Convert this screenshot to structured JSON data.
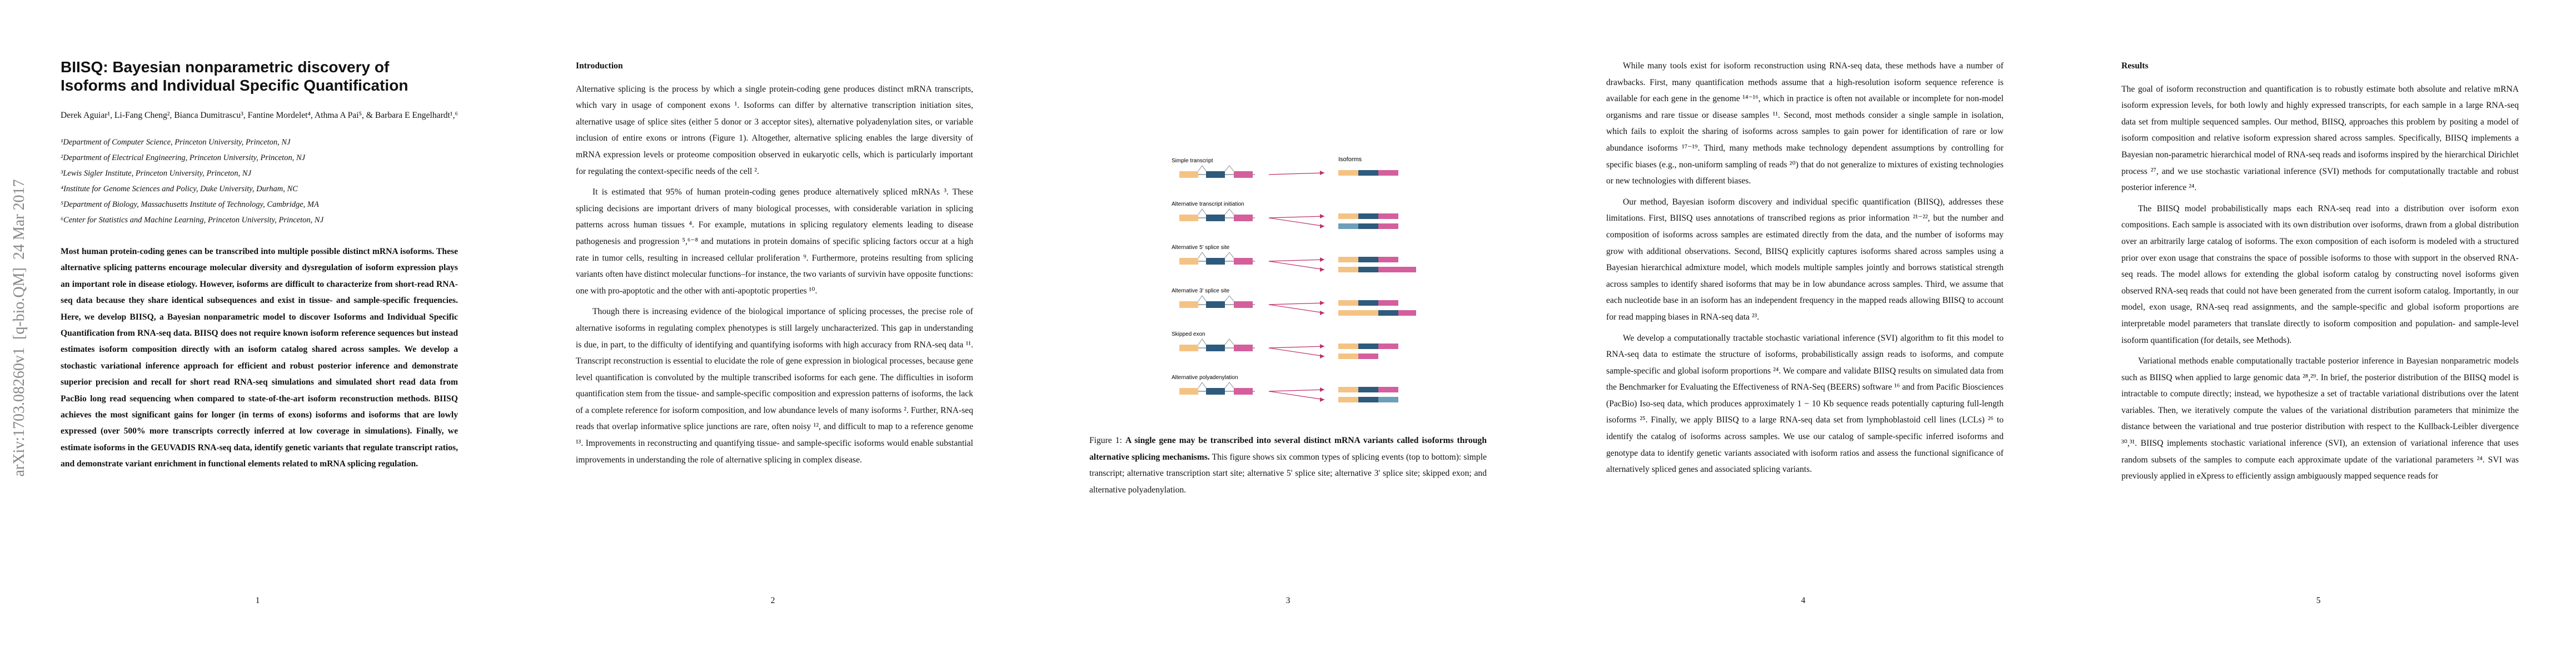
{
  "pages": [
    {
      "arxiv_stamp": "arXiv:1703.08260v1  [q-bio.QM]  24 Mar 2017",
      "title": "BIISQ: Bayesian nonparametric discovery of Isoforms and Individual Specific Quantification",
      "authors": "Derek Aguiar¹, Li-Fang Cheng², Bianca Dumitrascu³, Fantine Mordelet⁴, Athma A Pai⁵, & Barbara E Engelhardt¹,⁶",
      "affiliations": [
        "¹Department of Computer Science, Princeton University, Princeton, NJ",
        "²Department of Electrical Engineering, Princeton University, Princeton, NJ",
        "³Lewis Sigler Institute, Princeton University, Princeton, NJ",
        "⁴Institute for Genome Sciences and Policy, Duke University, Durham, NC",
        "⁵Department of Biology, Massachusetts Institute of Technology, Cambridge, MA",
        "⁶Center for Statistics and Machine Learning, Princeton University, Princeton, NJ"
      ],
      "abstract": "Most human protein-coding genes can be transcribed into multiple possible distinct mRNA isoforms. These alternative splicing patterns encourage molecular diversity and dysregulation of isoform expression plays an important role in disease etiology. However, isoforms are difficult to characterize from short-read RNA-seq data because they share identical subsequences and exist in tissue- and sample-specific frequencies. Here, we develop BIISQ, a Bayesian nonparametric model to discover Isoforms and Individual Specific Quantification from RNA-seq data. BIISQ does not require known isoform reference sequences but instead estimates isoform composition directly with an isoform catalog shared across samples. We develop a stochastic variational inference approach for efficient and robust posterior inference and demonstrate superior precision and recall for short read RNA-seq simulations and simulated short read data from PacBio long read sequencing when compared to state-of-the-art isoform reconstruction methods. BIISQ achieves the most significant gains for longer (in terms of exons) isoforms and isoforms that are lowly expressed (over 500% more transcripts correctly inferred at low coverage in simulations). Finally, we estimate isoforms in the GEUVADIS RNA-seq data, identify genetic variants that regulate transcript ratios, and demonstrate variant enrichment in functional elements related to mRNA splicing regulation.",
      "number": "1"
    },
    {
      "heading": "Introduction",
      "paragraphs": [
        "Alternative splicing is the process by which a single protein-coding gene produces distinct mRNA transcripts, which vary in usage of component exons ¹. Isoforms can differ by alternative transcription initiation sites, alternative usage of splice sites (either 5 donor or 3 acceptor sites), alternative polyadenylation sites, or variable inclusion of entire exons or introns (Figure 1). Altogether, alternative splicing enables the large diversity of mRNA expression levels or proteome composition observed in eukaryotic cells, which is particularly important for regulating the context-specific needs of the cell ².",
        "It is estimated that 95% of human protein-coding genes produce alternatively spliced mRNAs ³. These splicing decisions are important drivers of many biological processes, with considerable variation in splicing patterns across human tissues ⁴. For example, mutations in splicing regulatory elements leading to disease pathogenesis and progression ⁵,⁶⁻⁸ and mutations in protein domains of specific splicing factors occur at a high rate in tumor cells, resulting in increased cellular proliferation ⁹. Furthermore, proteins resulting from splicing variants often have distinct molecular functions–for instance, the two variants of survivin have opposite functions: one with pro-apoptotic and the other with anti-apoptotic properties ¹⁰.",
        "Though there is increasing evidence of the biological importance of splicing processes, the precise role of alternative isoforms in regulating complex phenotypes is still largely uncharacterized. This gap in understanding is due, in part, to the difficulty of identifying and quantifying isoforms with high accuracy from RNA-seq data ¹¹. Transcript reconstruction is essential to elucidate the role of gene expression in biological processes, because gene level quantification is convoluted by the multiple transcribed isoforms for each gene. The difficulties in isoform quantification stem from the tissue- and sample-specific composition and expression patterns of isoforms, the lack of a complete reference for isoform composition, and low abundance levels of many isoforms ². Further, RNA-seq reads that overlap informative splice junctions are rare, often noisy ¹², and difficult to map to a reference genome ¹³. Improvements in reconstructing and quantifying tissue- and sample-specific isoforms would enable substantial improvements in understanding the role of alternative splicing in complex disease."
      ],
      "number": "2"
    },
    {
      "figure": {
        "labels": [
          "Simple transcript",
          "Alternative transcript initiation",
          "Alternative 5' splice site",
          "Alternative 3' splice site",
          "Skipped exon",
          "Alternative polyadenylation"
        ],
        "isoforms_label": "Isoforms"
      },
      "caption": {
        "label": "Figure 1:",
        "bold": "A single gene may be transcribed into several distinct mRNA variants called isoforms through alternative splicing mechanisms.",
        "text": "This figure shows six common types of splicing events (top to bottom): simple transcript; alternative transcription start site; alternative 5' splice site; alternative 3' splice site; skipped exon; and alternative polyadenylation."
      },
      "number": "3"
    },
    {
      "paragraphs": [
        "While many tools exist for isoform reconstruction using RNA-seq data, these methods have a number of drawbacks. First, many quantification methods assume that a high-resolution isoform sequence reference is available for each gene in the genome ¹⁴⁻¹⁶, which in practice is often not available or incomplete for non-model organisms and rare tissue or disease samples ¹¹. Second, most methods consider a single sample in isolation, which fails to exploit the sharing of isoforms across samples to gain power for identification of rare or low abundance isoforms ¹⁷⁻¹⁹. Third, many methods make technology dependent assumptions by controlling for specific biases (e.g., non-uniform sampling of reads ²⁰) that do not generalize to mixtures of existing technologies or new technologies with different biases.",
        "Our method, Bayesian isoform discovery and individual specific quantification (BIISQ), addresses these limitations. First, BIISQ uses annotations of transcribed regions as prior information ²¹⁻²², but the number and composition of isoforms across samples are estimated directly from the data, and the number of isoforms may grow with additional observations. Second, BIISQ explicitly captures isoforms shared across samples using a Bayesian hierarchical admixture model, which models multiple samples jointly and borrows statistical strength across samples to identify shared isoforms that may be in low abundance across samples. Third, we assume that each nucleotide base in an isoform has an independent frequency in the mapped reads allowing BIISQ to account for read mapping biases in RNA-seq data ²³.",
        "We develop a computationally tractable stochastic variational inference (SVI) algorithm to fit this model to RNA-seq data to estimate the structure of isoforms, probabilistically assign reads to isoforms, and compute sample-specific and global isoform proportions ²⁴. We compare and validate BIISQ results on simulated data from the Benchmarker for Evaluating the Effectiveness of RNA-Seq (BEERS) software ¹⁶ and from Pacific Biosciences (PacBio) Iso-seq data, which produces approximately 1 − 10 Kb sequence reads potentially capturing full-length isoforms ²⁵. Finally, we apply BIISQ to a large RNA-seq data set from lymphoblastoid cell lines (LCLs) ²⁶ to identify the catalog of isoforms across samples. We use our catalog of sample-specific inferred isoforms and genotype data to identify genetic variants associated with isoform ratios and assess the functional significance of alternatively spliced genes and associated splicing variants."
      ],
      "number": "4"
    },
    {
      "heading": "Results",
      "paragraphs": [
        "The goal of isoform reconstruction and quantification is to robustly estimate both absolute and relative mRNA isoform expression levels, for both lowly and highly expressed transcripts, for each sample in a large RNA-seq data set from multiple sequenced samples. Our method, BIISQ, approaches this problem by positing a model of isoform composition and relative isoform expression shared across samples. Specifically, BIISQ implements a Bayesian non-parametric hierarchical model of RNA-seq reads and isoforms inspired by the hierarchical Dirichlet process ²⁷, and we use stochastic variational inference (SVI) methods for computationally tractable and robust posterior inference ²⁴.",
        "The BIISQ model probabilistically maps each RNA-seq read into a distribution over isoform exon compositions. Each sample is associated with its own distribution over isoforms, drawn from a global distribution over an arbitrarily large catalog of isoforms. The exon composition of each isoform is modeled with a structured prior over exon usage that constrains the space of possible isoforms to those with support in the observed RNA-seq reads. The model allows for extending the global isoform catalog by constructing novel isoforms given observed RNA-seq reads that could not have been generated from the current isoform catalog. Importantly, in our model, exon usage, RNA-seq read assignments, and the sample-specific and global isoform proportions are interpretable model parameters that translate directly to isoform composition and population- and sample-level isoform quantification (for details, see Methods).",
        "Variational methods enable computationally tractable posterior inference in Bayesian nonparametric models such as BIISQ when applied to large genomic data ²⁸,²⁹. In brief, the posterior distribution of the BIISQ model is intractable to compute directly; instead, we hypothesize a set of tractable variational distributions over the latent variables. Then, we iteratively compute the values of the variational distribution parameters that minimize the distance between the variational and true posterior distribution with respect to the Kullback-Leibler divergence ³⁰,³¹. BIISQ implements stochastic variational inference (SVI), an extension of variational inference that uses random subsets of the samples to compute each approximate update of the variational parameters ²⁴. SVI was previously applied in eXpress to efficiently assign ambiguously mapped sequence reads for"
      ],
      "number": "5"
    }
  ]
}
